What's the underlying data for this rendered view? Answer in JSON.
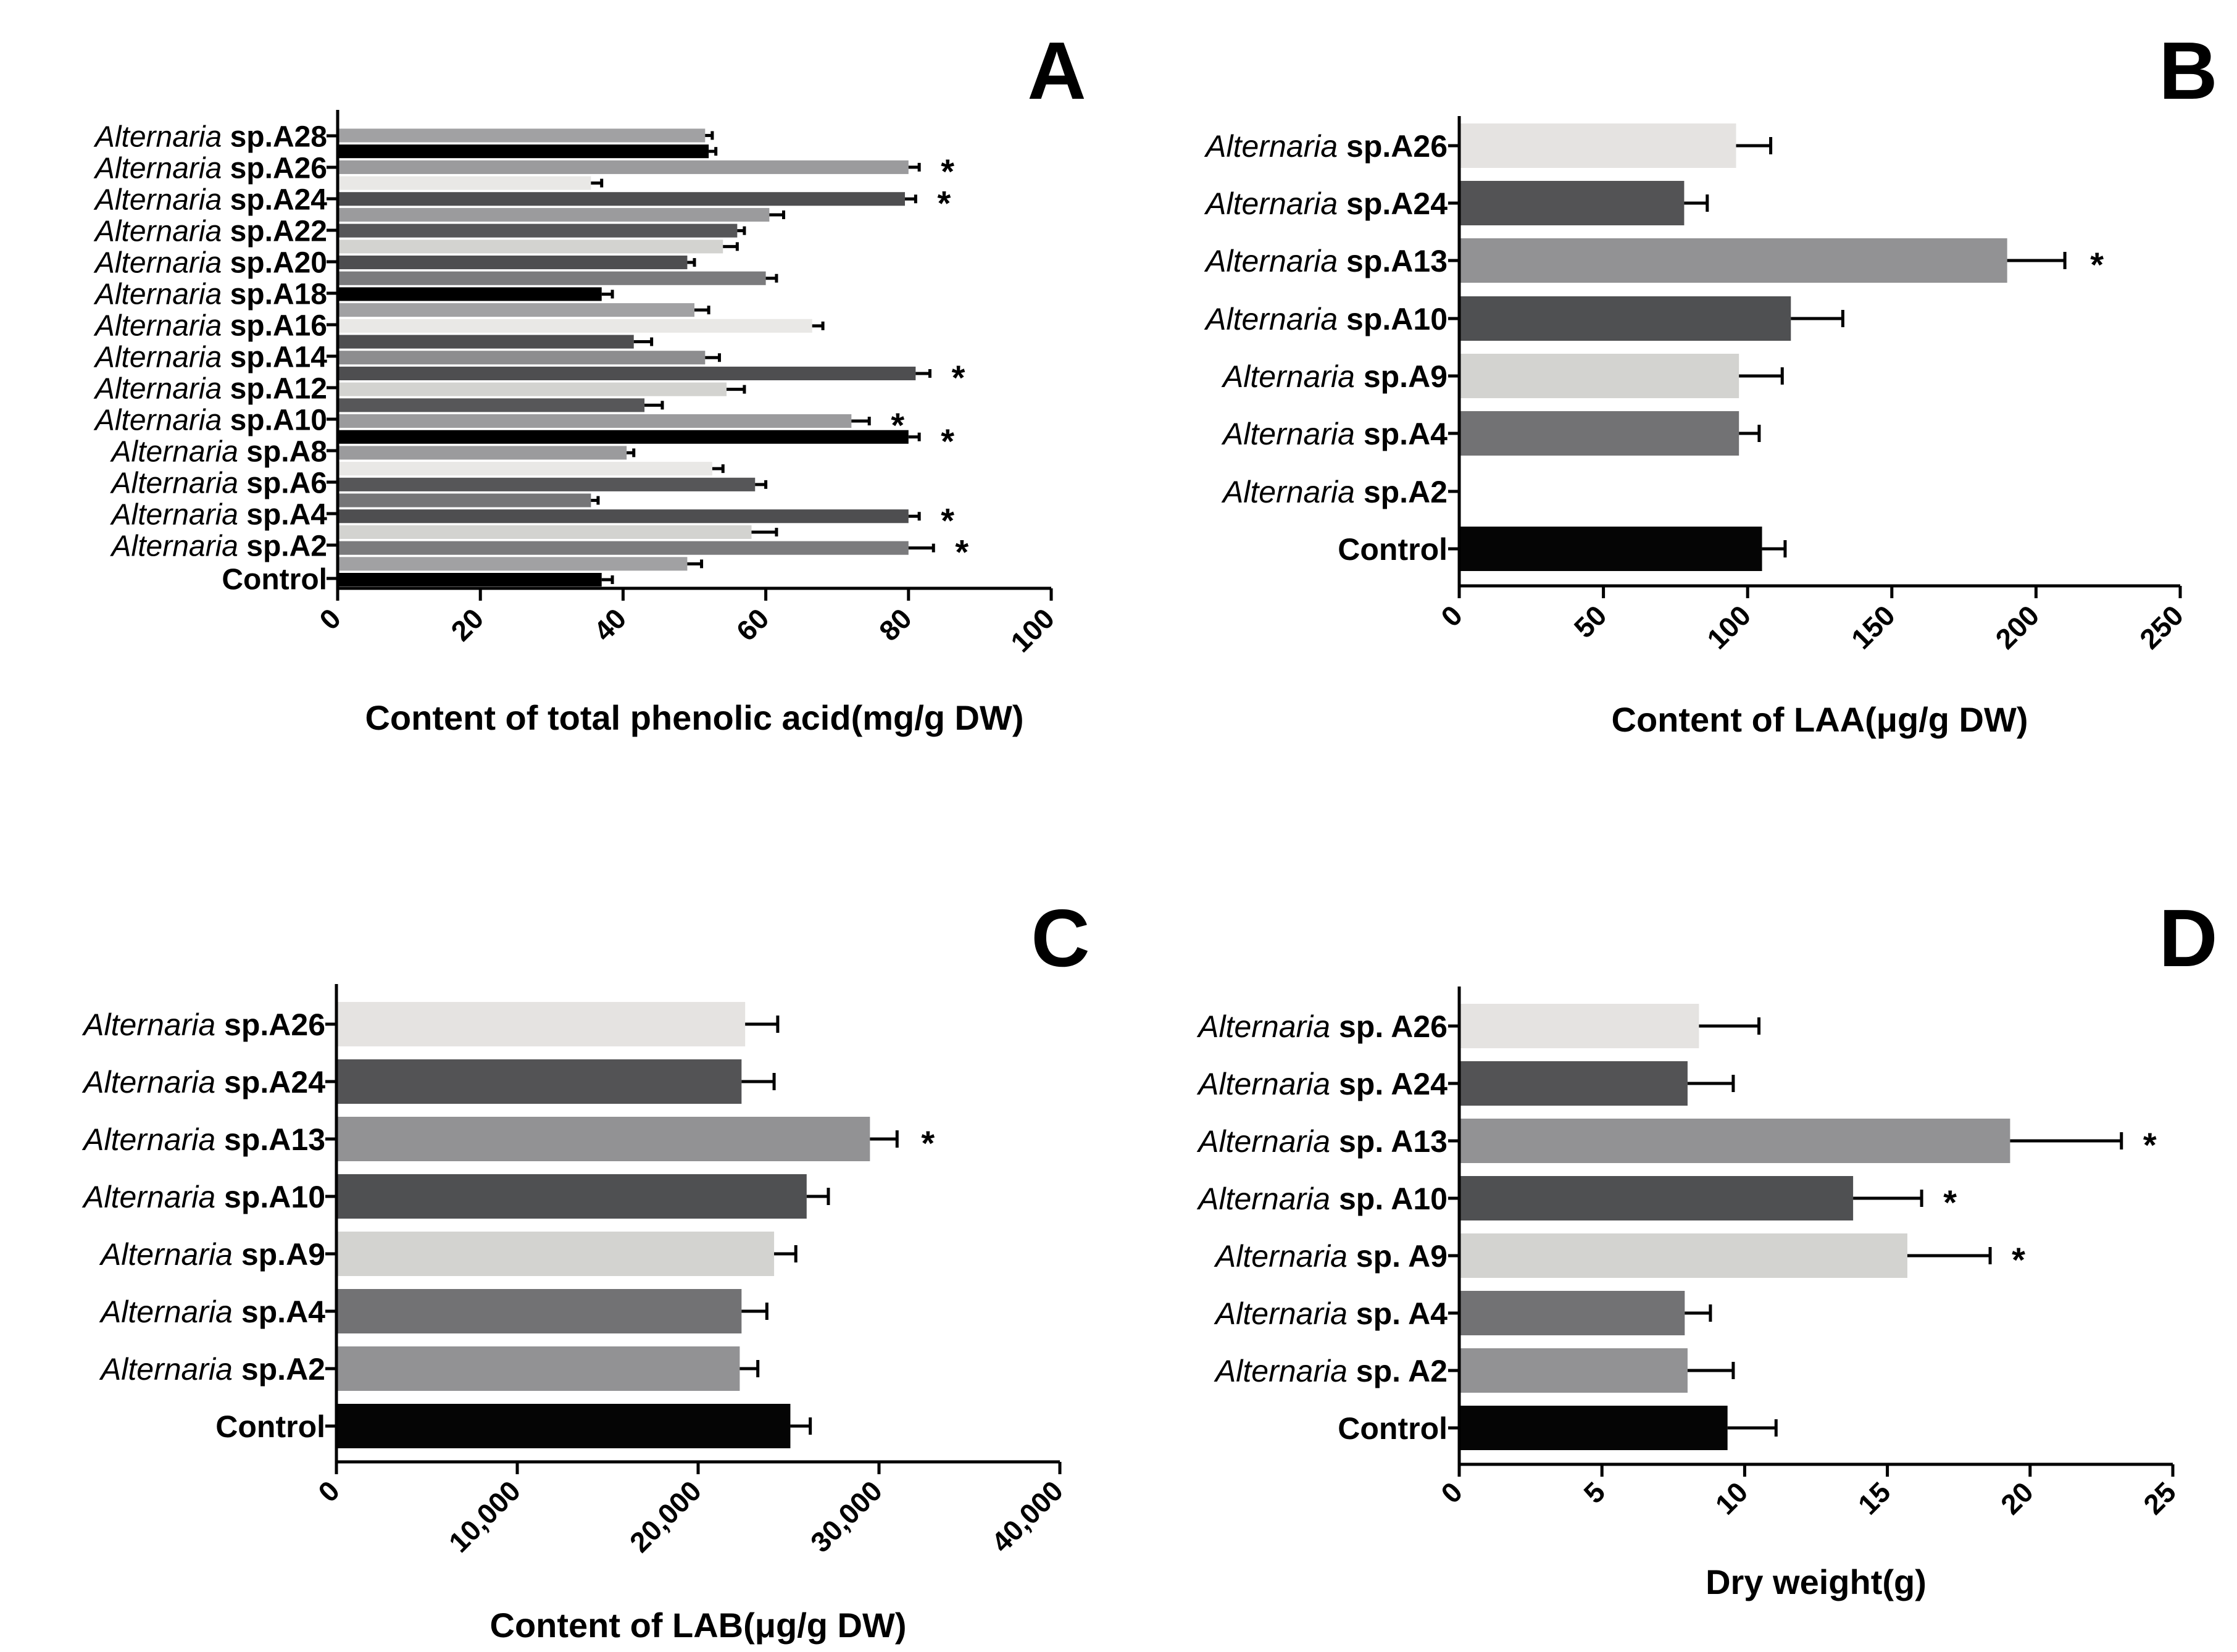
{
  "figure": {
    "panels": [
      {
        "letter": "A",
        "categories": [
          {
            "genus": "",
            "sp": "Control"
          },
          {
            "genus": "Alternaria",
            "sp": "sp.A2"
          },
          {
            "genus": "Alternaria",
            "sp": "sp.A4"
          },
          {
            "genus": "Alternaria",
            "sp": "sp.A6"
          },
          {
            "genus": "Alternaria",
            "sp": "sp.A8"
          },
          {
            "genus": "Alternaria",
            "sp": "sp.A10"
          },
          {
            "genus": "Alternaria",
            "sp": "sp.A12"
          },
          {
            "genus": "Alternaria",
            "sp": "sp.A14"
          },
          {
            "genus": "Alternaria",
            "sp": "sp.A16"
          },
          {
            "genus": "Alternaria",
            "sp": "sp.A18"
          },
          {
            "genus": "Alternaria",
            "sp": "sp.A20"
          },
          {
            "genus": "Alternaria",
            "sp": "sp.A22"
          },
          {
            "genus": "Alternaria",
            "sp": "sp.A24"
          },
          {
            "genus": "Alternaria",
            "sp": "sp.A26"
          },
          {
            "genus": "Alternaria",
            "sp": "sp.A28"
          }
        ],
        "xlabel": "Content of total phenolic acid(mg/g DW)",
        "ticks": [
          "0",
          "20",
          "40",
          "60",
          "80",
          "100"
        ]
      },
      {
        "letter": "B",
        "categories": [
          {
            "genus": "",
            "sp": "Control"
          },
          {
            "genus": "Alternaria",
            "sp": "sp.A2"
          },
          {
            "genus": "Alternaria",
            "sp": "sp.A4"
          },
          {
            "genus": "Alternaria",
            "sp": "sp.A9"
          },
          {
            "genus": "Alternaria",
            "sp": "sp.A10"
          },
          {
            "genus": "Alternaria",
            "sp": "sp.A13"
          },
          {
            "genus": "Alternaria",
            "sp": "sp.A24"
          },
          {
            "genus": "Alternaria",
            "sp": "sp.A26"
          }
        ],
        "xlabel": "Content of LAA(μg/g DW)",
        "ticks": [
          "0",
          "50",
          "100",
          "150",
          "200",
          "250"
        ]
      },
      {
        "letter": "C",
        "categories": [
          {
            "genus": "",
            "sp": "Control"
          },
          {
            "genus": "Alternaria",
            "sp": "sp.A2"
          },
          {
            "genus": "Alternaria",
            "sp": "sp.A4"
          },
          {
            "genus": "Alternaria",
            "sp": "sp.A9"
          },
          {
            "genus": "Alternaria",
            "sp": "sp.A10"
          },
          {
            "genus": "Alternaria",
            "sp": "sp.A13"
          },
          {
            "genus": "Alternaria",
            "sp": "sp.A24"
          },
          {
            "genus": "Alternaria",
            "sp": "sp.A26"
          }
        ],
        "xlabel": "Content of LAB(μg/g DW)",
        "ticks": [
          "0",
          "10,000",
          "20,000",
          "30,000",
          "40,000"
        ]
      },
      {
        "letter": "D",
        "categories": [
          {
            "genus": "",
            "sp": "Control"
          },
          {
            "genus": "Alternaria",
            "sp": "sp. A2"
          },
          {
            "genus": "Alternaria",
            "sp": "sp. A4"
          },
          {
            "genus": "Alternaria",
            "sp": "sp. A9"
          },
          {
            "genus": "Alternaria",
            "sp": "sp. A10"
          },
          {
            "genus": "Alternaria",
            "sp": "sp. A13"
          },
          {
            "genus": "Alternaria",
            "sp": "sp. A24"
          },
          {
            "genus": "Alternaria",
            "sp": "sp. A26"
          }
        ],
        "xlabel": "Dry weight(g)",
        "ticks": [
          "0",
          "5",
          "10",
          "15",
          "20",
          "25"
        ]
      }
    ]
  },
  "chart_data": [
    {
      "type": "bar",
      "orientation": "horizontal",
      "panel": "A",
      "categories": [
        "Control",
        "Alternaria sp.A2",
        "Alternaria sp.A4",
        "Alternaria sp.A6",
        "Alternaria sp.A8",
        "Alternaria sp.A10",
        "Alternaria sp.A12",
        "Alternaria sp.A14",
        "Alternaria sp.A16",
        "Alternaria sp.A18",
        "Alternaria sp.A20",
        "Alternaria sp.A22",
        "Alternaria sp.A24",
        "Alternaria sp.A26",
        "Alternaria sp.A28"
      ],
      "title": "",
      "xlabel": "Content of total phenolic acid(mg/g DW)",
      "ylabel": "",
      "xlim": [
        0,
        100
      ],
      "bars": [
        {
          "value": 37,
          "error": 1.5,
          "color": "#000000"
        },
        {
          "value": 49,
          "error": 2,
          "color": "#a1a1a3"
        },
        {
          "value": 80,
          "error": 3.5,
          "color": "#7b7b7d"
        },
        {
          "value": 58,
          "error": 3.5,
          "color": "#d3d3d0"
        },
        {
          "value": 80,
          "error": 1.5,
          "color": "#4e4e50"
        },
        {
          "value": 35.5,
          "error": 1,
          "color": "#757577"
        },
        {
          "value": 58.5,
          "error": 1.5,
          "color": "#565658"
        },
        {
          "value": 52.5,
          "error": 1.5,
          "color": "#e9e8e6"
        },
        {
          "value": 40.5,
          "error": 1,
          "color": "#9b9b9d"
        },
        {
          "value": 80,
          "error": 1.5,
          "color": "#000000"
        },
        {
          "value": 72,
          "error": 2.5,
          "color": "#9b9b9d"
        },
        {
          "value": 43,
          "error": 2.5,
          "color": "#575759"
        },
        {
          "value": 54.5,
          "error": 2.5,
          "color": "#d3d3d0"
        },
        {
          "value": 81,
          "error": 2,
          "color": "#4e4e50"
        },
        {
          "value": 51.5,
          "error": 2,
          "color": "#8d8d8f"
        },
        {
          "value": 41.5,
          "error": 2.5,
          "color": "#4e4e50"
        },
        {
          "value": 66.5,
          "error": 1.5,
          "color": "#e9e8e6"
        },
        {
          "value": 50,
          "error": 2,
          "color": "#a1a1a3"
        },
        {
          "value": 37,
          "error": 1.5,
          "color": "#000000"
        },
        {
          "value": 60,
          "error": 1.5,
          "color": "#7b7b7d"
        },
        {
          "value": 49,
          "error": 1,
          "color": "#4e4e50"
        },
        {
          "value": 54,
          "error": 2,
          "color": "#d3d3d0"
        },
        {
          "value": 56,
          "error": 1,
          "color": "#565658"
        },
        {
          "value": 60.5,
          "error": 2,
          "color": "#9b9b9d"
        },
        {
          "value": 79.5,
          "error": 1.5,
          "color": "#4e4e50"
        },
        {
          "value": 35.5,
          "error": 1.5,
          "color": "#e9e8e6"
        },
        {
          "value": 80,
          "error": 1.5,
          "color": "#9b9b9d"
        },
        {
          "value": 52,
          "error": 1,
          "color": "#000000"
        },
        {
          "value": 51.5,
          "error": 1,
          "color": "#a1a1a3"
        }
      ],
      "significant_bar_indices": [
        2,
        4,
        9,
        10,
        13,
        24,
        26
      ]
    },
    {
      "type": "bar",
      "orientation": "horizontal",
      "panel": "B",
      "categories": [
        "Control",
        "Alternaria sp.A2",
        "Alternaria sp.A4",
        "Alternaria sp.A9",
        "Alternaria sp.A10",
        "Alternaria sp.A13",
        "Alternaria sp.A24",
        "Alternaria sp.A26"
      ],
      "title": "",
      "xlabel": "Content of LAA(μg/g DW)",
      "ylabel": "",
      "xlim": [
        0,
        250
      ],
      "values": [
        105,
        0,
        97,
        97,
        115,
        190,
        78,
        96
      ],
      "errors": [
        8,
        0,
        7,
        15,
        18,
        20,
        8,
        12
      ],
      "colors": [
        "#050505",
        "#ffffff",
        "#727274",
        "#d3d3d0",
        "#4f5052",
        "#929294",
        "#535355",
        "#e5e3e1"
      ],
      "significant": [
        false,
        false,
        false,
        false,
        false,
        true,
        false,
        false
      ]
    },
    {
      "type": "bar",
      "orientation": "horizontal",
      "panel": "C",
      "categories": [
        "Control",
        "Alternaria sp.A2",
        "Alternaria sp.A4",
        "Alternaria sp.A9",
        "Alternaria sp.A10",
        "Alternaria sp.A13",
        "Alternaria sp.A24",
        "Alternaria sp.A26"
      ],
      "title": "",
      "xlabel": "Content of LAB(μg/g DW)",
      "ylabel": "",
      "xlim": [
        0,
        40000
      ],
      "values": [
        25100,
        22300,
        22400,
        24200,
        26000,
        29500,
        22400,
        22600
      ],
      "errors": [
        1100,
        1000,
        1400,
        1200,
        1200,
        1500,
        1800,
        1800
      ],
      "colors": [
        "#050505",
        "#929294",
        "#727274",
        "#d3d3d0",
        "#4f5052",
        "#929294",
        "#535355",
        "#e5e3e1"
      ],
      "significant": [
        false,
        false,
        false,
        false,
        false,
        true,
        false,
        false
      ]
    },
    {
      "type": "bar",
      "orientation": "horizontal",
      "panel": "D",
      "categories": [
        "Control",
        "Alternaria sp. A2",
        "Alternaria sp. A4",
        "Alternaria sp. A9",
        "Alternaria sp. A10",
        "Alternaria sp. A13",
        "Alternaria sp. A24",
        "Alternaria sp. A26"
      ],
      "title": "",
      "xlabel": "Dry weight(g)",
      "ylabel": "",
      "xlim": [
        0,
        25
      ],
      "values": [
        9.4,
        8,
        7.9,
        15.7,
        13.8,
        19.3,
        8,
        8.4
      ],
      "errors": [
        1.7,
        1.6,
        0.9,
        2.9,
        2.4,
        3.9,
        1.6,
        2.1
      ],
      "colors": [
        "#050505",
        "#929294",
        "#727274",
        "#d3d3d0",
        "#4f5052",
        "#929294",
        "#535355",
        "#e5e3e1"
      ],
      "significant": [
        false,
        false,
        false,
        true,
        true,
        true,
        false,
        false
      ]
    }
  ]
}
